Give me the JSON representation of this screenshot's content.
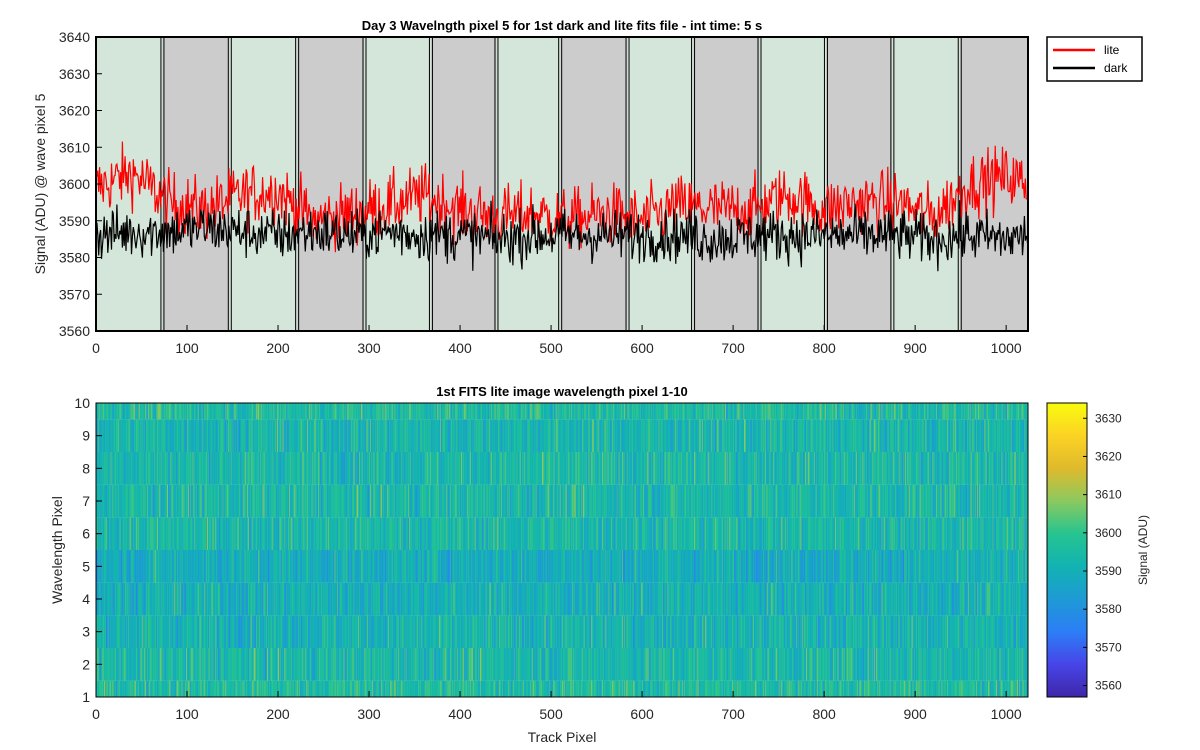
{
  "chart_data": [
    {
      "type": "line",
      "title": "Day 3 Wavelngth pixel 5 for 1st dark and lite fits file - int time: 5 s",
      "xlabel": "",
      "ylabel": "Signal (ADU) @ wave pixel 5",
      "xlim": [
        0,
        1024
      ],
      "ylim": [
        3560,
        3640
      ],
      "x_ticks": [
        0,
        100,
        200,
        300,
        400,
        500,
        600,
        700,
        800,
        900,
        1000
      ],
      "y_ticks": [
        3560,
        3570,
        3580,
        3590,
        3600,
        3610,
        3620,
        3630,
        3640
      ],
      "grid": false,
      "legend_position": "outside-right-top",
      "shaded_bands": [
        {
          "start": 0,
          "end": 73,
          "kind": "lite"
        },
        {
          "start": 73,
          "end": 147,
          "kind": "dark"
        },
        {
          "start": 147,
          "end": 221,
          "kind": "lite"
        },
        {
          "start": 221,
          "end": 295,
          "kind": "dark"
        },
        {
          "start": 295,
          "end": 368,
          "kind": "lite"
        },
        {
          "start": 368,
          "end": 440,
          "kind": "dark"
        },
        {
          "start": 440,
          "end": 510,
          "kind": "lite"
        },
        {
          "start": 510,
          "end": 584,
          "kind": "dark"
        },
        {
          "start": 584,
          "end": 656,
          "kind": "lite"
        },
        {
          "start": 656,
          "end": 729,
          "kind": "dark"
        },
        {
          "start": 729,
          "end": 802,
          "kind": "lite"
        },
        {
          "start": 802,
          "end": 875,
          "kind": "dark"
        },
        {
          "start": 875,
          "end": 949,
          "kind": "lite"
        },
        {
          "start": 949,
          "end": 1024,
          "kind": "dark"
        }
      ],
      "band_colors": {
        "lite": "#d4e6d9",
        "dark": "#cccccc"
      },
      "series": [
        {
          "name": "lite",
          "color": "#ff0000",
          "x_sampled": [
            0,
            40,
            80,
            120,
            160,
            200,
            240,
            280,
            320,
            360,
            400,
            440,
            480,
            520,
            560,
            600,
            640,
            680,
            720,
            760,
            800,
            840,
            880,
            920,
            960,
            1000,
            1024
          ],
          "y_sampled": [
            3599,
            3603,
            3595,
            3593,
            3597,
            3598,
            3590,
            3592,
            3594,
            3597,
            3593,
            3591,
            3592,
            3590,
            3592,
            3590,
            3594,
            3593,
            3593,
            3597,
            3593,
            3595,
            3595,
            3591,
            3600,
            3602,
            3600
          ]
        },
        {
          "name": "dark",
          "color": "#000000",
          "x_sampled": [
            0,
            40,
            80,
            120,
            160,
            200,
            240,
            280,
            320,
            360,
            400,
            440,
            480,
            520,
            560,
            600,
            640,
            680,
            720,
            760,
            800,
            840,
            880,
            920,
            960,
            1000,
            1024
          ],
          "y_sampled": [
            3586,
            3587,
            3587,
            3588,
            3587,
            3586,
            3587,
            3586,
            3587,
            3586,
            3586,
            3585,
            3586,
            3586,
            3586,
            3586,
            3586,
            3585,
            3586,
            3586,
            3586,
            3586,
            3586,
            3585,
            3586,
            3585,
            3586
          ]
        }
      ],
      "noise_amplitude": {
        "lite": 6,
        "dark": 5
      }
    },
    {
      "type": "heatmap",
      "title": "1st FITS lite image wavelength pixel 1-10",
      "xlabel": "Track Pixel",
      "ylabel": "Wavelength Pixel",
      "xlim": [
        0,
        1024
      ],
      "ylim": [
        1,
        10
      ],
      "x_ticks": [
        0,
        100,
        200,
        300,
        400,
        500,
        600,
        700,
        800,
        900,
        1000
      ],
      "y_ticks": [
        1,
        2,
        3,
        4,
        5,
        6,
        7,
        8,
        9,
        10
      ],
      "rows": 10,
      "columns": 1024,
      "row_mean_values": [
        3596,
        3594,
        3592,
        3591,
        3590,
        3594,
        3594,
        3594,
        3593,
        3596
      ],
      "value_range": [
        3557,
        3634
      ],
      "colorbar": {
        "label": "Signal (ADU)",
        "ticks": [
          3560,
          3570,
          3580,
          3590,
          3600,
          3610,
          3620,
          3630
        ]
      },
      "colormap": [
        "#3e26a8",
        "#4745e8",
        "#2c7ef7",
        "#1e9ad4",
        "#12b3b2",
        "#26c490",
        "#8bc95f",
        "#dfba2c",
        "#fbd324",
        "#f9fb0e"
      ]
    }
  ]
}
